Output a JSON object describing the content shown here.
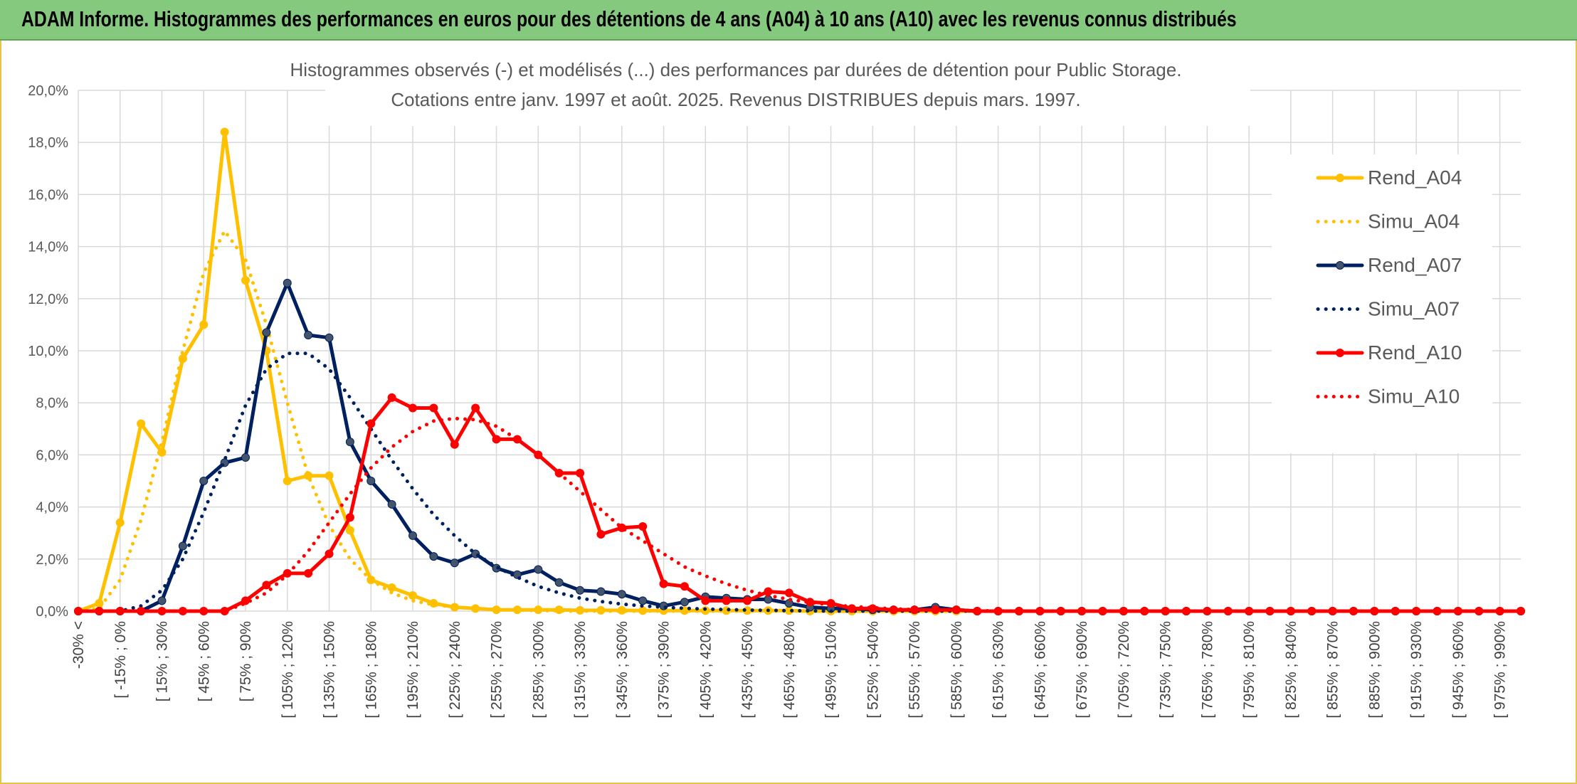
{
  "banner": {
    "title": "ADAM Informe. Histogrammes des performances en euros pour des détentions de 4 ans (A04) à 10 ans (A10) avec les revenus connus distribués"
  },
  "chart_data": {
    "type": "line",
    "title_lines": [
      "Histogrammes observés (-) et modélisés (...) des performances par durées de détention pour Public Storage.",
      "Cotations entre janv. 1997 et août. 2025. Revenus DISTRIBUES depuis mars. 1997."
    ],
    "xlabel": "",
    "ylabel": "",
    "ylim": [
      0,
      20
    ],
    "yticks": [
      "0,0%",
      "2,0%",
      "4,0%",
      "6,0%",
      "8,0%",
      "10,0%",
      "12,0%",
      "14,0%",
      "16,0%",
      "18,0%",
      "20,0%"
    ],
    "grid": true,
    "legend_position": "right",
    "x_tick_labels": [
      "-30% <",
      "[ -15% ; 0%",
      "[ 15% ; 30%",
      "[ 45% ; 60%",
      "[ 75% ; 90%",
      "[ 105% ; 120%",
      "[ 135% ; 150%",
      "[ 165% ; 180%",
      "[ 195% ; 210%",
      "[ 225% ; 240%",
      "[ 255% ; 270%",
      "[ 285% ; 300%",
      "[ 315% ; 330%",
      "[ 345% ; 360%",
      "[ 375% ; 390%",
      "[ 405% ; 420%",
      "[ 435% ; 450%",
      "[ 465% ; 480%",
      "[ 495% ; 510%",
      "[ 525% ; 540%",
      "[ 555% ; 570%",
      "[ 585% ; 600%",
      "[ 615% ; 630%",
      "[ 645% ; 660%",
      "[ 675% ; 690%",
      "[ 705% ; 720%",
      "[ 735% ; 750%",
      "[ 765% ; 780%",
      "[ 795% ; 810%",
      "[ 825% ; 840%",
      "[ 855% ; 870%",
      "[ 885% ; 900%",
      "[ 915% ; 930%",
      "[ 945% ; 960%",
      "[ 975% ; 990%"
    ],
    "n_points": 70,
    "series": [
      {
        "name": "Rend_A04",
        "color": "#FFC000",
        "style": "solid",
        "markers": true,
        "values": [
          0,
          0.3,
          3.4,
          7.2,
          6.1,
          9.7,
          11.0,
          18.4,
          12.7,
          10.0,
          5.0,
          5.2,
          5.2,
          3.1,
          1.2,
          0.9,
          0.6,
          0.3,
          0.15,
          0.1,
          0.05,
          0.05,
          0.05,
          0.05,
          0.03,
          0.03,
          0.03,
          0.02,
          0.02,
          0.02,
          0.02,
          0.02,
          0.02,
          0.02,
          0.02,
          0,
          0,
          0,
          0,
          0,
          0,
          0,
          0,
          0,
          0,
          0,
          0,
          0,
          0,
          0,
          0,
          0,
          0,
          0,
          0,
          0,
          0,
          0,
          0,
          0,
          0,
          0,
          0,
          0,
          0,
          0,
          0,
          0,
          0,
          0
        ]
      },
      {
        "name": "Simu_A04",
        "color": "#FFC000",
        "style": "dotted",
        "markers": false,
        "values": [
          0,
          0.1,
          1.2,
          3.5,
          6.5,
          10.0,
          13.0,
          14.6,
          13.5,
          11.0,
          8.0,
          5.2,
          3.3,
          2.0,
          1.2,
          0.7,
          0.4,
          0.25,
          0.15,
          0.1,
          0.06,
          0.04,
          0.02,
          0.01,
          0,
          0,
          0,
          0,
          0,
          0,
          0,
          0,
          0,
          0,
          0,
          0,
          0,
          0,
          0,
          0,
          0,
          0,
          0,
          0,
          0,
          0,
          0,
          0,
          0,
          0,
          0,
          0,
          0,
          0,
          0,
          0,
          0,
          0,
          0,
          0,
          0,
          0,
          0,
          0,
          0,
          0,
          0,
          0,
          0,
          0
        ]
      },
      {
        "name": "Rend_A07",
        "color": "#002060",
        "style": "solid",
        "markers": true,
        "values": [
          0,
          0,
          0,
          0,
          0.4,
          2.5,
          5.0,
          5.7,
          5.9,
          10.7,
          12.6,
          10.6,
          10.5,
          6.5,
          5.0,
          4.1,
          2.9,
          2.1,
          1.85,
          2.2,
          1.65,
          1.4,
          1.6,
          1.1,
          0.8,
          0.75,
          0.65,
          0.4,
          0.2,
          0.35,
          0.55,
          0.5,
          0.45,
          0.45,
          0.3,
          0.15,
          0.1,
          0.1,
          0.05,
          0.05,
          0.05,
          0.15,
          0.05,
          0,
          0,
          0,
          0,
          0,
          0,
          0,
          0,
          0,
          0,
          0,
          0,
          0,
          0,
          0,
          0,
          0,
          0,
          0,
          0,
          0,
          0,
          0,
          0,
          0,
          0,
          0
        ]
      },
      {
        "name": "Simu_A07",
        "color": "#002060",
        "style": "dotted",
        "markers": false,
        "values": [
          0,
          0,
          0,
          0.2,
          0.8,
          2.0,
          3.8,
          5.8,
          7.9,
          9.3,
          9.9,
          9.9,
          9.3,
          8.2,
          7.0,
          5.8,
          4.7,
          3.7,
          2.9,
          2.2,
          1.7,
          1.3,
          0.95,
          0.7,
          0.5,
          0.37,
          0.27,
          0.2,
          0.15,
          0.11,
          0.08,
          0.06,
          0.04,
          0.03,
          0.02,
          0.01,
          0,
          0,
          0,
          0,
          0,
          0,
          0,
          0,
          0,
          0,
          0,
          0,
          0,
          0,
          0,
          0,
          0,
          0,
          0,
          0,
          0,
          0,
          0,
          0,
          0,
          0,
          0,
          0,
          0,
          0,
          0,
          0,
          0,
          0
        ]
      },
      {
        "name": "Rend_A10",
        "color": "#FF0000",
        "style": "solid",
        "markers": true,
        "values": [
          0,
          0,
          0,
          0,
          0,
          0,
          0,
          0,
          0.4,
          1.0,
          1.45,
          1.45,
          2.2,
          3.6,
          7.2,
          8.2,
          7.8,
          7.8,
          6.4,
          7.8,
          6.6,
          6.6,
          6.0,
          5.3,
          5.3,
          2.95,
          3.2,
          3.25,
          1.05,
          0.95,
          0.4,
          0.4,
          0.4,
          0.75,
          0.7,
          0.35,
          0.3,
          0.1,
          0.1,
          0.05,
          0.05,
          0.05,
          0.05,
          0,
          0,
          0,
          0,
          0,
          0,
          0,
          0,
          0,
          0,
          0,
          0,
          0,
          0,
          0,
          0,
          0,
          0,
          0,
          0,
          0,
          0,
          0,
          0,
          0,
          0,
          0
        ]
      },
      {
        "name": "Simu_A10",
        "color": "#FF0000",
        "style": "dotted",
        "markers": false,
        "values": [
          0,
          0,
          0,
          0,
          0,
          0,
          0,
          0,
          0.3,
          0.7,
          1.4,
          2.3,
          3.4,
          4.5,
          5.5,
          6.3,
          6.9,
          7.3,
          7.4,
          7.35,
          7.1,
          6.6,
          6.0,
          5.3,
          4.6,
          3.9,
          3.2,
          2.7,
          2.2,
          1.7,
          1.35,
          1.05,
          0.8,
          0.6,
          0.45,
          0.33,
          0.24,
          0.18,
          0.13,
          0.09,
          0.06,
          0.04,
          0.03,
          0.02,
          0.01,
          0,
          0,
          0,
          0,
          0,
          0,
          0,
          0,
          0,
          0,
          0,
          0,
          0,
          0,
          0,
          0,
          0,
          0,
          0,
          0,
          0,
          0,
          0,
          0,
          0
        ]
      }
    ]
  }
}
